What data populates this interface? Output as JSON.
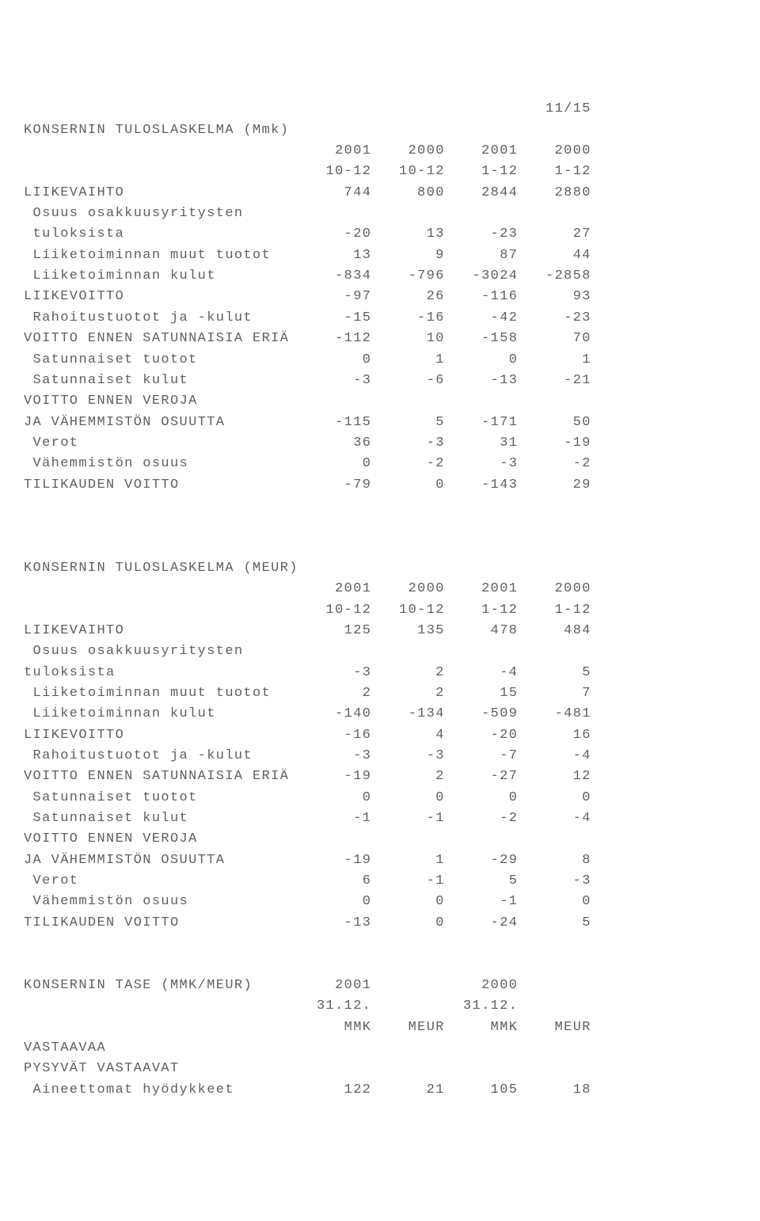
{
  "page_number": "11/15",
  "font": {
    "family": "Courier New",
    "size_pt": 13,
    "color": "#606060",
    "background": "#ffffff"
  },
  "label_col_width": 30,
  "num_col_width": 8,
  "table1": {
    "title": "KONSERNIN TULOSLASKELMA (Mmk)",
    "headers1": [
      "2001",
      "2000",
      "2001",
      "2000"
    ],
    "headers2": [
      "10-12",
      "10-12",
      "1-12",
      "1-12"
    ],
    "rows": [
      {
        "label": "LIIKEVAIHTO",
        "indent": 0,
        "vals": [
          "744",
          "800",
          "2844",
          "2880"
        ]
      },
      {
        "label": " Osuus osakkuusyritysten",
        "indent": 0,
        "vals": null
      },
      {
        "label": " tuloksista",
        "indent": 0,
        "vals": [
          "-20",
          "13",
          "-23",
          "27"
        ]
      },
      {
        "label": " Liiketoiminnan muut tuotot",
        "indent": 0,
        "vals": [
          "13",
          "9",
          "87",
          "44"
        ]
      },
      {
        "label": " Liiketoiminnan kulut",
        "indent": 0,
        "vals": [
          "-834",
          "-796",
          "-3024",
          "-2858"
        ]
      },
      {
        "label": "LIIKEVOITTO",
        "indent": 0,
        "vals": [
          "-97",
          "26",
          "-116",
          "93"
        ]
      },
      {
        "label": " Rahoitustuotot ja -kulut",
        "indent": 0,
        "vals": [
          "-15",
          "-16",
          "-42",
          "-23"
        ]
      },
      {
        "label": "VOITTO ENNEN SATUNNAISIA ERIÄ",
        "indent": 0,
        "vals": [
          "-112",
          "10",
          "-158",
          "70"
        ]
      },
      {
        "label": " Satunnaiset tuotot",
        "indent": 0,
        "vals": [
          "0",
          "1",
          "0",
          "1"
        ]
      },
      {
        "label": " Satunnaiset kulut",
        "indent": 0,
        "vals": [
          "-3",
          "-6",
          "-13",
          "-21"
        ]
      },
      {
        "label": "VOITTO ENNEN VEROJA",
        "indent": 0,
        "vals": null
      },
      {
        "label": "JA VÄHEMMISTÖN OSUUTTA",
        "indent": 0,
        "vals": [
          "-115",
          "5",
          "-171",
          "50"
        ]
      },
      {
        "label": " Verot",
        "indent": 0,
        "vals": [
          "36",
          "-3",
          "31",
          "-19"
        ]
      },
      {
        "label": " Vähemmistön osuus",
        "indent": 0,
        "vals": [
          "0",
          "-2",
          "-3",
          "-2"
        ]
      },
      {
        "label": "TILIKAUDEN VOITTO",
        "indent": 0,
        "vals": [
          "-79",
          "0",
          "-143",
          "29"
        ]
      }
    ]
  },
  "table2": {
    "title": "KONSERNIN TULOSLASKELMA (MEUR)",
    "headers1": [
      "2001",
      "2000",
      "2001",
      "2000"
    ],
    "headers2": [
      "10-12",
      "10-12",
      "1-12",
      "1-12"
    ],
    "rows": [
      {
        "label": "LIIKEVAIHTO",
        "indent": 0,
        "vals": [
          "125",
          "135",
          "478",
          "484"
        ]
      },
      {
        "label": " Osuus osakkuusyritysten",
        "indent": 0,
        "vals": null
      },
      {
        "label": "tuloksista",
        "indent": 0,
        "vals": [
          "-3",
          "2",
          "-4",
          "5"
        ]
      },
      {
        "label": " Liiketoiminnan muut tuotot",
        "indent": 0,
        "vals": [
          "2",
          "2",
          "15",
          "7"
        ]
      },
      {
        "label": " Liiketoiminnan kulut",
        "indent": 0,
        "vals": [
          "-140",
          "-134",
          "-509",
          "-481"
        ]
      },
      {
        "label": "LIIKEVOITTO",
        "indent": 0,
        "vals": [
          "-16",
          "4",
          "-20",
          "16"
        ]
      },
      {
        "label": " Rahoitustuotot ja -kulut",
        "indent": 0,
        "vals": [
          "-3",
          "-3",
          "-7",
          "-4"
        ]
      },
      {
        "label": "VOITTO ENNEN SATUNNAISIA ERIÄ",
        "indent": 0,
        "vals": [
          "-19",
          "2",
          "-27",
          "12"
        ]
      },
      {
        "label": " Satunnaiset tuotot",
        "indent": 0,
        "vals": [
          "0",
          "0",
          "0",
          "0"
        ]
      },
      {
        "label": " Satunnaiset kulut",
        "indent": 0,
        "vals": [
          "-1",
          "-1",
          "-2",
          "-4"
        ]
      },
      {
        "label": "VOITTO ENNEN VEROJA",
        "indent": 0,
        "vals": null
      },
      {
        "label": "JA VÄHEMMISTÖN OSUUTTA",
        "indent": 0,
        "vals": [
          "-19",
          "1",
          "-29",
          "8"
        ]
      },
      {
        "label": " Verot",
        "indent": 0,
        "vals": [
          "6",
          "-1",
          "5",
          "-3"
        ]
      },
      {
        "label": " Vähemmistön osuus",
        "indent": 0,
        "vals": [
          "0",
          "0",
          "-1",
          "0"
        ]
      },
      {
        "label": "TILIKAUDEN VOITTO",
        "indent": 0,
        "vals": [
          "-13",
          "0",
          "-24",
          "5"
        ]
      }
    ]
  },
  "table3": {
    "title": "KONSERNIN TASE (MMK/MEUR)",
    "header_col_labels": [
      "2001",
      "2000"
    ],
    "header_date_labels": [
      "31.12.",
      "31.12."
    ],
    "sub_headers": [
      "MMK",
      "MEUR",
      "MMK",
      "MEUR"
    ],
    "rows": [
      {
        "label": "VASTAAVAA",
        "indent": 0,
        "vals": null
      },
      {
        "label": "PYSYVÄT VASTAAVAT",
        "indent": 0,
        "vals": null
      },
      {
        "label": " Aineettomat hyödykkeet",
        "indent": 0,
        "vals": [
          "122",
          "21",
          "105",
          "18"
        ]
      }
    ]
  }
}
